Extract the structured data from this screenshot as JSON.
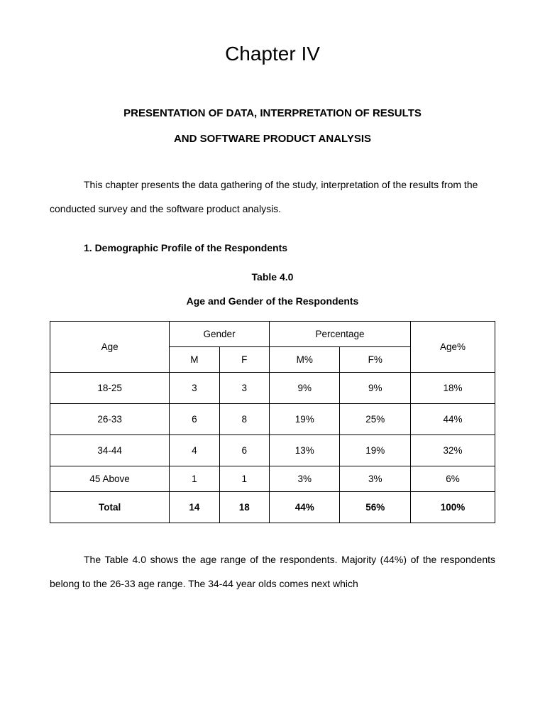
{
  "chapter_title": "Chapter IV",
  "section_heading_line1": "PRESENTATION OF DATA, INTERPRETATION OF RESULTS",
  "section_heading_line2": "AND SOFTWARE PRODUCT ANALYSIS",
  "intro_paragraph": "This chapter presents the data gathering of the study, interpretation of the results from the conducted survey and the software product analysis.",
  "sub_heading": "1. Demographic Profile of the Respondents",
  "table_label": "Table 4.0",
  "table_caption": "Age and Gender of the Respondents",
  "table": {
    "headers": {
      "age": "Age",
      "gender": "Gender",
      "percentage": "Percentage",
      "age_pct": "Age%",
      "m": "M",
      "f": "F",
      "m_pct": "M%",
      "f_pct": "F%"
    },
    "rows": [
      {
        "age": "18-25",
        "m": "3",
        "f": "3",
        "m_pct": "9%",
        "f_pct": "9%",
        "age_pct": "18%"
      },
      {
        "age": "26-33",
        "m": "6",
        "f": "8",
        "m_pct": "19%",
        "f_pct": "25%",
        "age_pct": "44%"
      },
      {
        "age": "34-44",
        "m": "4",
        "f": "6",
        "m_pct": "13%",
        "f_pct": "19%",
        "age_pct": "32%"
      },
      {
        "age": "45 Above",
        "m": "1",
        "f": "1",
        "m_pct": "3%",
        "f_pct": "3%",
        "age_pct": "6%"
      }
    ],
    "total": {
      "label": "Total",
      "m": "14",
      "f": "18",
      "m_pct": "44%",
      "f_pct": "56%",
      "age_pct": "100%"
    }
  },
  "closing_paragraph": "The Table 4.0 shows the age range of the respondents. Majority (44%) of the respondents belong to the 26-33 age range. The 34-44 year olds comes next which",
  "colors": {
    "background": "#ffffff",
    "text": "#000000",
    "border": "#000000"
  },
  "typography": {
    "font_family": "Arial",
    "chapter_title_size": 28,
    "heading_size": 15,
    "body_size": 14,
    "table_size": 13.5
  }
}
